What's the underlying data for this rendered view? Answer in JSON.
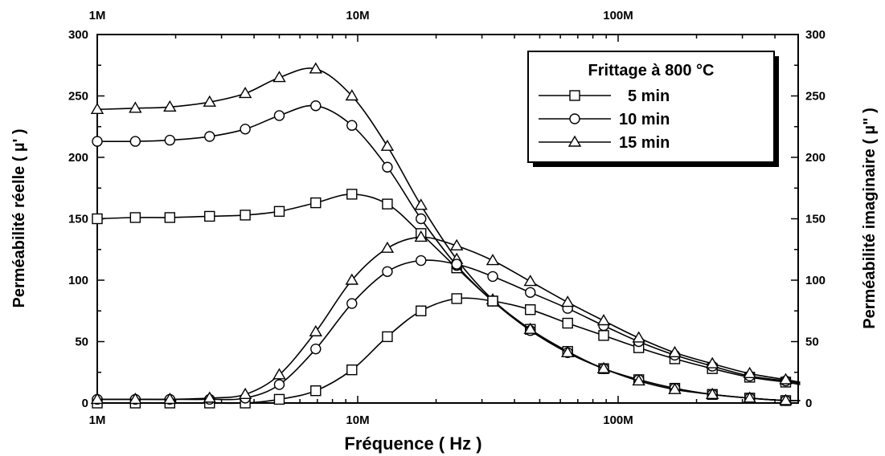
{
  "chart_data": {
    "type": "line",
    "title": "",
    "xlabel": "Fréquence ( Hz )",
    "ylabel_left": "Perméabilité réelle ( µ' )",
    "ylabel_right": "Perméabilité imaginaire ( µ\" )",
    "x_scale": "log",
    "xlim": [
      1000000,
      500000000
    ],
    "ylim": [
      0,
      300
    ],
    "x_ticks": [
      {
        "value": 1000000,
        "label": "1M"
      },
      {
        "value": 10000000,
        "label": "10M"
      },
      {
        "value": 100000000,
        "label": "100M"
      }
    ],
    "y_ticks": [
      0,
      50,
      100,
      150,
      200,
      250,
      300
    ],
    "y_tick_labels": [
      "0",
      "50",
      "100",
      "150",
      "200",
      "250",
      "300"
    ],
    "grid": false,
    "legend": {
      "title": "Frittage à 800 °C",
      "placement": "top-right",
      "entries": [
        {
          "label": "5 min",
          "marker": "square"
        },
        {
          "label": "10 min",
          "marker": "circle"
        },
        {
          "label": "15 min",
          "marker": "triangle"
        }
      ]
    },
    "series": [
      {
        "name": "5 min",
        "component": "real",
        "marker": "square",
        "x": [
          1000000,
          1400000,
          1900000,
          2700000,
          3700000,
          5000000,
          6900000,
          9500000,
          13000000,
          17500000,
          24000000,
          33000000,
          46000000,
          64000000,
          88000000,
          120000000,
          165000000,
          230000000,
          320000000,
          440000000,
          500000000
        ],
        "y": [
          150,
          151,
          151,
          152,
          153,
          156,
          163,
          170,
          162,
          138,
          110,
          83,
          60,
          42,
          28,
          19,
          12,
          7,
          4,
          2,
          2
        ]
      },
      {
        "name": "10 min",
        "component": "real",
        "marker": "circle",
        "x": [
          1000000,
          1400000,
          1900000,
          2700000,
          3700000,
          5000000,
          6900000,
          9500000,
          13000000,
          17500000,
          24000000,
          33000000,
          46000000,
          64000000,
          88000000,
          120000000,
          165000000,
          230000000,
          320000000,
          440000000,
          500000000
        ],
        "y": [
          213,
          213,
          214,
          217,
          223,
          234,
          242,
          226,
          192,
          150,
          112,
          83,
          59,
          41,
          28,
          19,
          12,
          7,
          4,
          2,
          2
        ]
      },
      {
        "name": "15 min",
        "component": "real",
        "marker": "triangle",
        "x": [
          1000000,
          1400000,
          1900000,
          2700000,
          3700000,
          5000000,
          6900000,
          9500000,
          13000000,
          17500000,
          24000000,
          33000000,
          46000000,
          64000000,
          88000000,
          120000000,
          165000000,
          230000000,
          320000000,
          440000000,
          500000000
        ],
        "y": [
          239,
          240,
          241,
          245,
          252,
          265,
          272,
          250,
          209,
          161,
          117,
          84,
          60,
          41,
          28,
          18,
          11,
          7,
          4,
          2,
          2
        ]
      },
      {
        "name": "5 min",
        "component": "imaginary",
        "marker": "square",
        "x": [
          1000000,
          1400000,
          1900000,
          2700000,
          3700000,
          5000000,
          6900000,
          9500000,
          13000000,
          17500000,
          24000000,
          33000000,
          46000000,
          64000000,
          88000000,
          120000000,
          165000000,
          230000000,
          320000000,
          440000000,
          500000000
        ],
        "y": [
          0,
          0,
          0,
          0,
          0,
          3,
          10,
          27,
          54,
          75,
          85,
          83,
          76,
          65,
          55,
          45,
          36,
          28,
          21,
          17,
          15
        ]
      },
      {
        "name": "10 min",
        "component": "imaginary",
        "marker": "circle",
        "x": [
          1000000,
          1400000,
          1900000,
          2700000,
          3700000,
          5000000,
          6900000,
          9500000,
          13000000,
          17500000,
          24000000,
          33000000,
          46000000,
          64000000,
          88000000,
          120000000,
          165000000,
          230000000,
          320000000,
          440000000,
          500000000
        ],
        "y": [
          3,
          3,
          3,
          3,
          4,
          15,
          44,
          81,
          107,
          116,
          113,
          103,
          90,
          77,
          63,
          50,
          39,
          30,
          22,
          18,
          16
        ]
      },
      {
        "name": "15 min",
        "component": "imaginary",
        "marker": "triangle",
        "x": [
          1000000,
          1400000,
          1900000,
          2700000,
          3700000,
          5000000,
          6900000,
          9500000,
          13000000,
          17500000,
          24000000,
          33000000,
          46000000,
          64000000,
          88000000,
          120000000,
          165000000,
          230000000,
          320000000,
          440000000,
          500000000
        ],
        "y": [
          3,
          3,
          3,
          4,
          7,
          23,
          58,
          100,
          126,
          135,
          128,
          116,
          99,
          82,
          67,
          53,
          41,
          32,
          24,
          19,
          17
        ]
      }
    ]
  },
  "colors": {
    "ink": "#000000",
    "background": "#ffffff",
    "legend_shadow": "#000000"
  }
}
